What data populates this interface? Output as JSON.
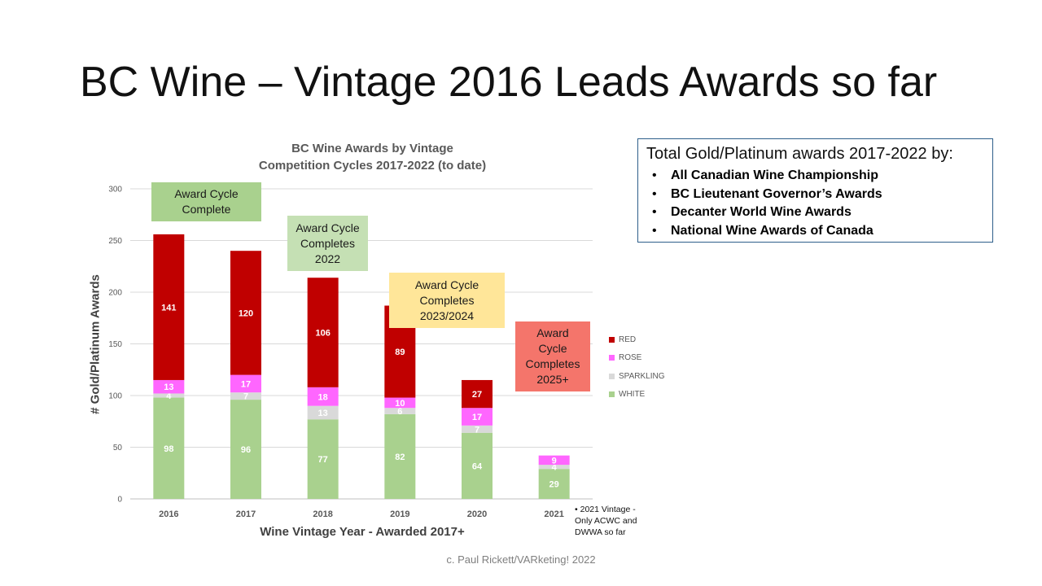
{
  "slide": {
    "title": "BC Wine – Vintage 2016 Leads Awards so far",
    "copyright": "c. Paul Rickett/VARketing! 2022"
  },
  "info_box": {
    "heading": "Total Gold/Platinum awards 2017-2022 by:",
    "items": [
      "All Canadian Wine Championship",
      "BC Lieutenant Governor’s Awards",
      "Decanter World Wine Awards",
      "National Wine Awards of Canada"
    ]
  },
  "callouts": [
    {
      "lines": [
        "Award Cycle",
        "Complete"
      ],
      "color": "#a9d18e"
    },
    {
      "lines": [
        "Award Cycle",
        "Completes",
        "2022"
      ],
      "color": "#c5e0b4"
    },
    {
      "lines": [
        "Award Cycle",
        "Completes",
        "2023/2024"
      ],
      "color": "#ffe699"
    },
    {
      "lines": [
        "Award",
        "Cycle",
        "Completes",
        "2025+"
      ],
      "color": "#f4756b"
    }
  ],
  "footnote": {
    "bullet": "•",
    "lines": [
      "2021 Vintage -",
      "Only ACWC and",
      "DWWA so far"
    ]
  },
  "chart_data": {
    "type": "bar",
    "stacked": true,
    "title": [
      "BC Wine Awards by Vintage",
      "Competition Cycles 2017-2022 (to date)"
    ],
    "xlabel": "Wine Vintage Year - Awarded 2017+",
    "ylabel": "# Gold/Platinum Awards",
    "ylim": [
      0,
      300
    ],
    "yticks": [
      0,
      50,
      100,
      150,
      200,
      250,
      300
    ],
    "categories": [
      "2016",
      "2017",
      "2018",
      "2019",
      "2020",
      "2021"
    ],
    "series": [
      {
        "name": "WHITE",
        "color": "#a9d18e",
        "values": [
          98,
          96,
          77,
          82,
          64,
          29
        ]
      },
      {
        "name": "SPARKLING",
        "color": "#d9d9d9",
        "values": [
          4,
          7,
          13,
          6,
          7,
          4
        ]
      },
      {
        "name": "ROSE",
        "color": "#ff66ff",
        "values": [
          13,
          17,
          18,
          10,
          17,
          9
        ]
      },
      {
        "name": "RED",
        "color": "#c00000",
        "values": [
          141,
          120,
          106,
          89,
          27,
          null
        ]
      }
    ],
    "legend_position": "right",
    "legend_order": [
      "RED",
      "ROSE",
      "SPARKLING",
      "WHITE"
    ],
    "grid": true
  }
}
